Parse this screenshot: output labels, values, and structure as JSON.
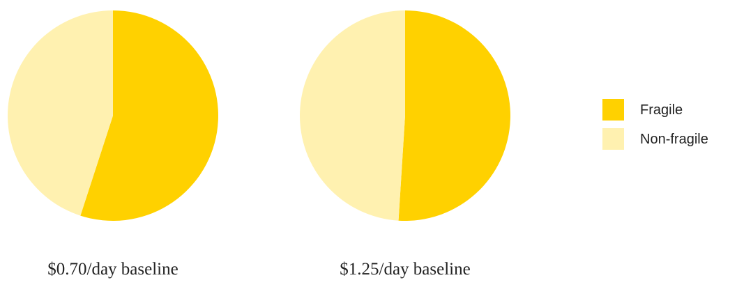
{
  "chart_data": [
    {
      "type": "pie",
      "caption": "$0.70/day baseline",
      "slices": [
        {
          "label": "Fragile",
          "value": 55
        },
        {
          "label": "Non-fragile",
          "value": 45
        }
      ]
    },
    {
      "type": "pie",
      "caption": "$1.25/day baseline",
      "slices": [
        {
          "label": "Fragile",
          "value": 51
        },
        {
          "label": "Non-fragile",
          "value": 49
        }
      ]
    }
  ],
  "legend": {
    "placement": "right",
    "items": [
      {
        "label": "Fragile",
        "color": "#FFD100"
      },
      {
        "label": "Non-fragile",
        "color": "#FFF1B0"
      }
    ]
  },
  "colors": {
    "Fragile": "#FFD100",
    "Non-fragile": "#FFF1B0"
  }
}
